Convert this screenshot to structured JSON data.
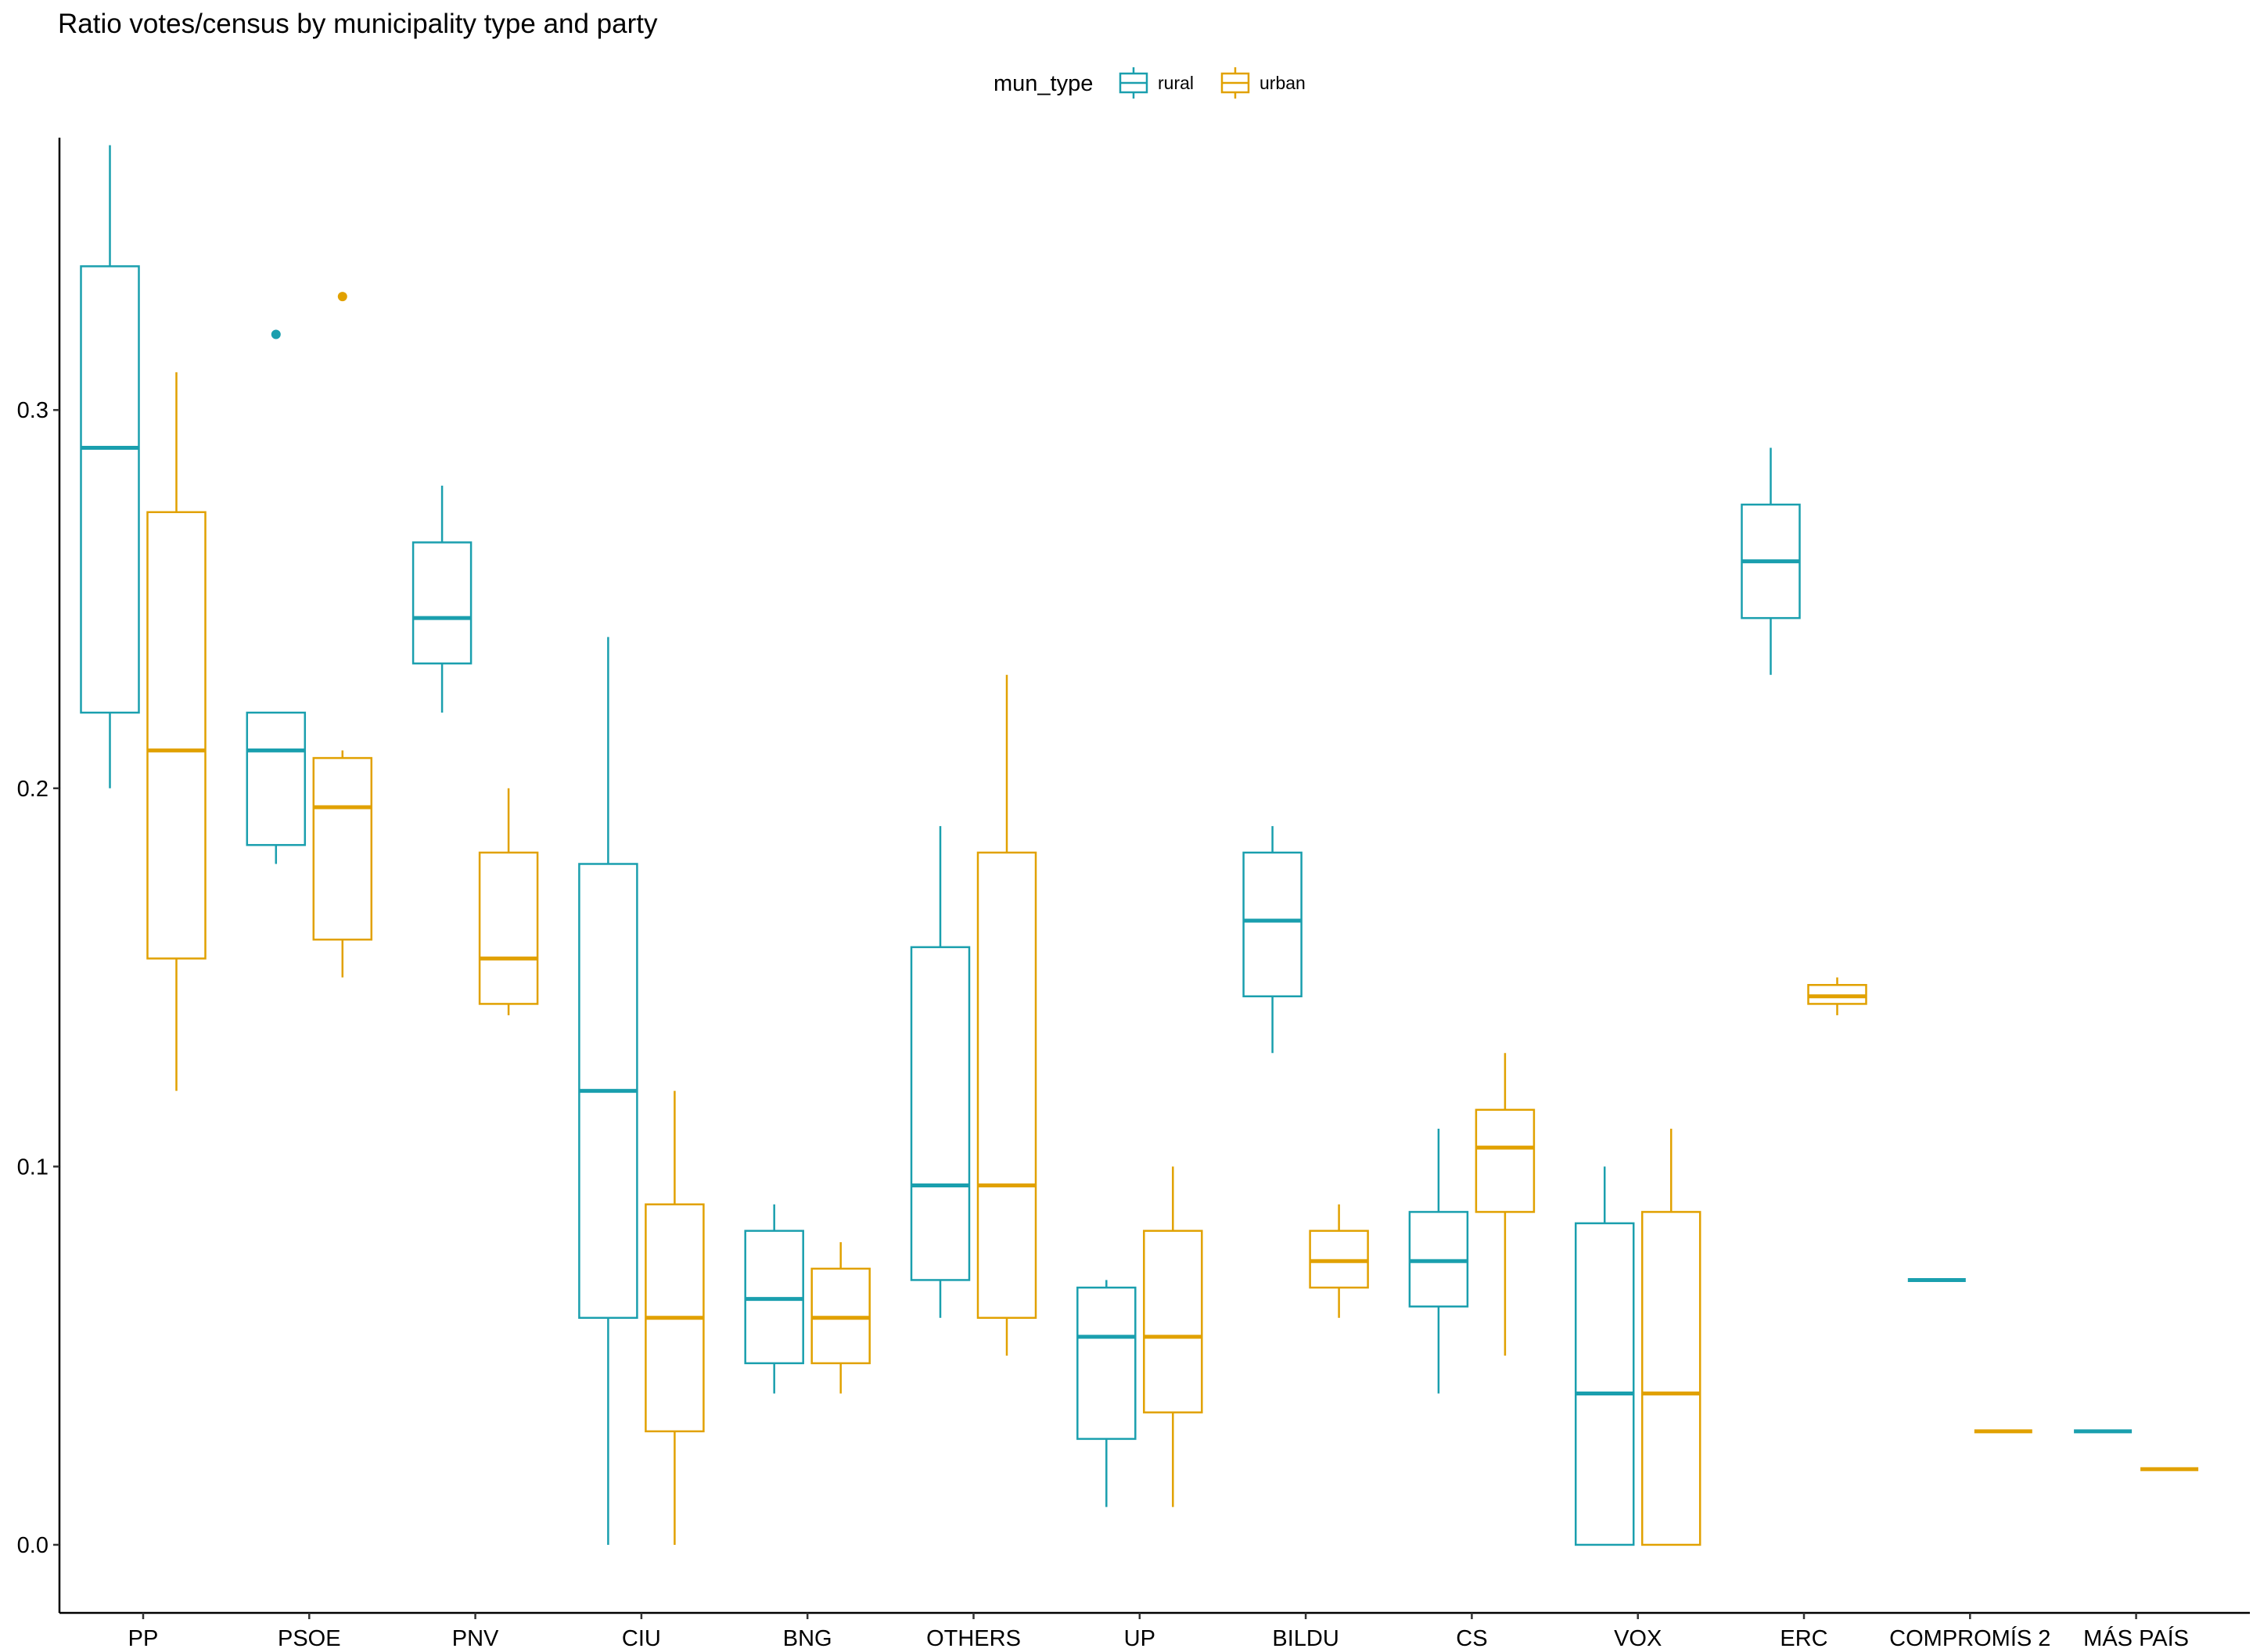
{
  "chart_data": {
    "type": "boxplot",
    "title": "Ratio votes/census by municipality type and party",
    "xlabel": "",
    "ylabel": "",
    "ylim": [
      -0.018,
      0.372
    ],
    "y_ticks": [
      0.0,
      0.1,
      0.2,
      0.3
    ],
    "y_tick_labels": [
      "0.0",
      "0.1",
      "0.2",
      "0.3"
    ],
    "grid": false,
    "legend": {
      "title": "mun_type",
      "position": "top",
      "entries": [
        {
          "label": "rural",
          "color": "#1A9FAE"
        },
        {
          "label": "urban",
          "color": "#E1A100"
        }
      ]
    },
    "categories": [
      "PP",
      "PSOE",
      "PNV",
      "CIU",
      "BNG",
      "OTHERS",
      "UP",
      "BILDU",
      "CS",
      "VOX",
      "ERC",
      "COMPROMÍS 2",
      "MÁS PAÍS"
    ],
    "series": [
      {
        "name": "rural",
        "color": "#1A9FAE",
        "boxes": [
          {
            "lower": 0.2,
            "q1": 0.22,
            "median": 0.29,
            "q3": 0.338,
            "upper": 0.37,
            "outliers": []
          },
          {
            "lower": 0.18,
            "q1": 0.185,
            "median": 0.21,
            "q3": 0.22,
            "upper": 0.22,
            "outliers": [
              0.32
            ]
          },
          {
            "lower": 0.22,
            "q1": 0.233,
            "median": 0.245,
            "q3": 0.265,
            "upper": 0.28,
            "outliers": []
          },
          {
            "lower": 0.0,
            "q1": 0.06,
            "median": 0.12,
            "q3": 0.18,
            "upper": 0.24,
            "outliers": []
          },
          {
            "lower": 0.04,
            "q1": 0.048,
            "median": 0.065,
            "q3": 0.083,
            "upper": 0.09,
            "outliers": []
          },
          {
            "lower": 0.06,
            "q1": 0.07,
            "median": 0.095,
            "q3": 0.158,
            "upper": 0.19,
            "outliers": []
          },
          {
            "lower": 0.01,
            "q1": 0.028,
            "median": 0.055,
            "q3": 0.068,
            "upper": 0.07,
            "outliers": []
          },
          {
            "lower": 0.13,
            "q1": 0.145,
            "median": 0.165,
            "q3": 0.183,
            "upper": 0.19,
            "outliers": []
          },
          {
            "lower": 0.04,
            "q1": 0.063,
            "median": 0.075,
            "q3": 0.088,
            "upper": 0.11,
            "outliers": []
          },
          {
            "lower": 0.0,
            "q1": 0.0,
            "median": 0.04,
            "q3": 0.085,
            "upper": 0.1,
            "outliers": []
          },
          {
            "lower": 0.23,
            "q1": 0.245,
            "median": 0.26,
            "q3": 0.275,
            "upper": 0.29,
            "outliers": []
          },
          {
            "lower": 0.07,
            "q1": 0.07,
            "median": 0.07,
            "q3": 0.07,
            "upper": 0.07,
            "outliers": []
          },
          {
            "lower": 0.03,
            "q1": 0.03,
            "median": 0.03,
            "q3": 0.03,
            "upper": 0.03,
            "outliers": []
          }
        ]
      },
      {
        "name": "urban",
        "color": "#E1A100",
        "boxes": [
          {
            "lower": 0.12,
            "q1": 0.155,
            "median": 0.21,
            "q3": 0.273,
            "upper": 0.31,
            "outliers": []
          },
          {
            "lower": 0.15,
            "q1": 0.16,
            "median": 0.195,
            "q3": 0.208,
            "upper": 0.21,
            "outliers": [
              0.33
            ]
          },
          {
            "lower": 0.14,
            "q1": 0.143,
            "median": 0.155,
            "q3": 0.183,
            "upper": 0.2,
            "outliers": []
          },
          {
            "lower": 0.0,
            "q1": 0.03,
            "median": 0.06,
            "q3": 0.09,
            "upper": 0.12,
            "outliers": []
          },
          {
            "lower": 0.04,
            "q1": 0.048,
            "median": 0.06,
            "q3": 0.073,
            "upper": 0.08,
            "outliers": []
          },
          {
            "lower": 0.05,
            "q1": 0.06,
            "median": 0.095,
            "q3": 0.183,
            "upper": 0.23,
            "outliers": []
          },
          {
            "lower": 0.01,
            "q1": 0.035,
            "median": 0.055,
            "q3": 0.083,
            "upper": 0.1,
            "outliers": []
          },
          {
            "lower": 0.06,
            "q1": 0.068,
            "median": 0.075,
            "q3": 0.083,
            "upper": 0.09,
            "outliers": []
          },
          {
            "lower": 0.05,
            "q1": 0.088,
            "median": 0.105,
            "q3": 0.115,
            "upper": 0.13,
            "outliers": []
          },
          {
            "lower": 0.0,
            "q1": 0.0,
            "median": 0.04,
            "q3": 0.088,
            "upper": 0.11,
            "outliers": []
          },
          {
            "lower": 0.14,
            "q1": 0.143,
            "median": 0.145,
            "q3": 0.148,
            "upper": 0.15,
            "outliers": []
          },
          {
            "lower": 0.03,
            "q1": 0.03,
            "median": 0.03,
            "q3": 0.03,
            "upper": 0.03,
            "outliers": []
          },
          {
            "lower": 0.02,
            "q1": 0.02,
            "median": 0.02,
            "q3": 0.02,
            "upper": 0.02,
            "outliers": []
          }
        ]
      }
    ]
  }
}
